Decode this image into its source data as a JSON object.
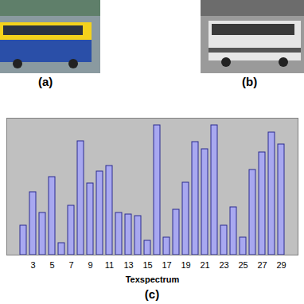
{
  "panel_labels": [
    "(a)",
    "(b)",
    "(c)"
  ],
  "chart_data": {
    "type": "bar",
    "x_label": "Texspectrum",
    "categories": [
      null,
      "3",
      null,
      "5",
      null,
      "7",
      null,
      "9",
      null,
      "11",
      null,
      "13",
      null,
      "15",
      null,
      "17",
      null,
      "19",
      null,
      "21",
      null,
      "23",
      null,
      "25",
      null,
      "27",
      null,
      "29"
    ],
    "values": [
      37,
      79,
      53,
      98,
      15,
      62,
      143,
      90,
      105,
      112,
      53,
      51,
      49,
      18,
      163,
      22,
      57,
      91,
      142,
      133,
      163,
      37,
      60,
      22,
      107,
      129,
      154,
      139
    ],
    "color": "#a8a8f0",
    "ylim": [
      0,
      172
    ],
    "yticks": [],
    "grid": false,
    "tick_labels": "x"
  }
}
